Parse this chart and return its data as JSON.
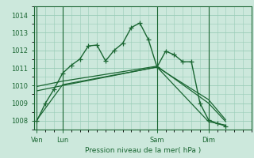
{
  "background_color": "#cce8dc",
  "grid_color": "#99ccb8",
  "line_color": "#1a6632",
  "xlabel": "Pression niveau de la mer( hPa )",
  "ylim": [
    1007.5,
    1014.5
  ],
  "yticks": [
    1008,
    1009,
    1010,
    1011,
    1012,
    1013,
    1014
  ],
  "xtick_labels": [
    "Ven",
    "Lun",
    "Sam",
    "Dim"
  ],
  "xtick_positions": [
    0,
    3,
    14,
    20
  ],
  "vline_positions": [
    0,
    3,
    14,
    20
  ],
  "xlim": [
    -0.3,
    25.0
  ],
  "series1_x": [
    0,
    1,
    2,
    3,
    4,
    5,
    6,
    7,
    8,
    9,
    10,
    11,
    12,
    13,
    14,
    15,
    16,
    17,
    18,
    19,
    20,
    21,
    22
  ],
  "series1_y": [
    1008.0,
    1009.0,
    1009.8,
    1010.7,
    1011.15,
    1011.5,
    1012.25,
    1012.3,
    1011.4,
    1012.0,
    1012.4,
    1013.3,
    1013.55,
    1012.6,
    1011.05,
    1011.95,
    1011.75,
    1011.35,
    1011.35,
    1009.0,
    1008.05,
    1007.85,
    1007.7
  ],
  "series2_x": [
    0,
    3,
    14,
    20,
    22
  ],
  "series2_y": [
    1009.7,
    1010.0,
    1011.05,
    1009.2,
    1008.05
  ],
  "series3_x": [
    0,
    3,
    14,
    20,
    22
  ],
  "series3_y": [
    1009.95,
    1010.25,
    1011.1,
    1009.0,
    1007.95
  ],
  "series4_x": [
    0,
    3,
    14,
    20,
    22
  ],
  "series4_y": [
    1008.05,
    1010.05,
    1011.05,
    1007.95,
    1007.75
  ]
}
